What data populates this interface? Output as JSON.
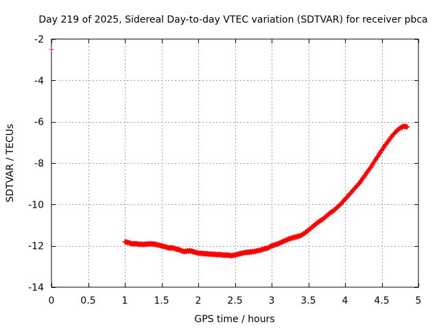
{
  "chart_data": {
    "type": "scatter",
    "title": "Day 219 of 2025, Sidereal Day-to-day VTEC variation (SDTVAR) for receiver pbca",
    "xlabel": "GPS time / hours",
    "ylabel": "SDTVAR / TECUs",
    "xlim": [
      0,
      5
    ],
    "ylim": [
      -14,
      -2
    ],
    "xticks": [
      0,
      0.5,
      1,
      1.5,
      2,
      2.5,
      3,
      3.5,
      4,
      4.5,
      5
    ],
    "xtick_labels": [
      "0",
      "0.5",
      "1",
      "1.5",
      "2",
      "2.5",
      "3",
      "3.5",
      "4",
      "4.5",
      "5"
    ],
    "yticks": [
      -14,
      -12,
      -10,
      -8,
      -6,
      -4,
      -2
    ],
    "ytick_labels": [
      "-14",
      "-12",
      "-10",
      "-8",
      "-6",
      "-4",
      "-2"
    ],
    "grid": true,
    "marker": "plus",
    "color": "#ff0000",
    "series": [
      {
        "name": "SDTVAR",
        "x": [
          0.0,
          1.0,
          1.05,
          1.1,
          1.15,
          1.2,
          1.25,
          1.3,
          1.35,
          1.4,
          1.45,
          1.5,
          1.55,
          1.6,
          1.65,
          1.7,
          1.75,
          1.8,
          1.85,
          1.9,
          1.95,
          2.0,
          2.05,
          2.1,
          2.15,
          2.2,
          2.25,
          2.3,
          2.35,
          2.4,
          2.45,
          2.5,
          2.55,
          2.6,
          2.65,
          2.7,
          2.75,
          2.8,
          2.85,
          2.9,
          2.95,
          3.0,
          3.05,
          3.1,
          3.15,
          3.2,
          3.25,
          3.3,
          3.35,
          3.4,
          3.45,
          3.5,
          3.55,
          3.6,
          3.65,
          3.7,
          3.75,
          3.8,
          3.85,
          3.9,
          3.95,
          4.0,
          4.05,
          4.1,
          4.15,
          4.2,
          4.25,
          4.3,
          4.35,
          4.4,
          4.45,
          4.5,
          4.55,
          4.6,
          4.65,
          4.7,
          4.75,
          4.8,
          4.85
        ],
        "y": [
          -2.5,
          -11.8,
          -11.85,
          -11.9,
          -11.9,
          -11.92,
          -11.93,
          -11.92,
          -11.9,
          -11.92,
          -11.95,
          -12.0,
          -12.05,
          -12.1,
          -12.1,
          -12.15,
          -12.2,
          -12.28,
          -12.25,
          -12.25,
          -12.3,
          -12.35,
          -12.37,
          -12.38,
          -12.4,
          -12.4,
          -12.42,
          -12.43,
          -12.45,
          -12.45,
          -12.47,
          -12.45,
          -12.4,
          -12.35,
          -12.32,
          -12.3,
          -12.28,
          -12.25,
          -12.2,
          -12.15,
          -12.1,
          -12.0,
          -11.95,
          -11.88,
          -11.8,
          -11.72,
          -11.65,
          -11.6,
          -11.55,
          -11.5,
          -11.38,
          -11.25,
          -11.1,
          -10.95,
          -10.82,
          -10.7,
          -10.55,
          -10.4,
          -10.28,
          -10.12,
          -9.95,
          -9.75,
          -9.55,
          -9.35,
          -9.15,
          -8.95,
          -8.7,
          -8.45,
          -8.2,
          -7.92,
          -7.65,
          -7.38,
          -7.12,
          -6.88,
          -6.65,
          -6.45,
          -6.3,
          -6.22,
          -6.25
        ]
      }
    ]
  }
}
